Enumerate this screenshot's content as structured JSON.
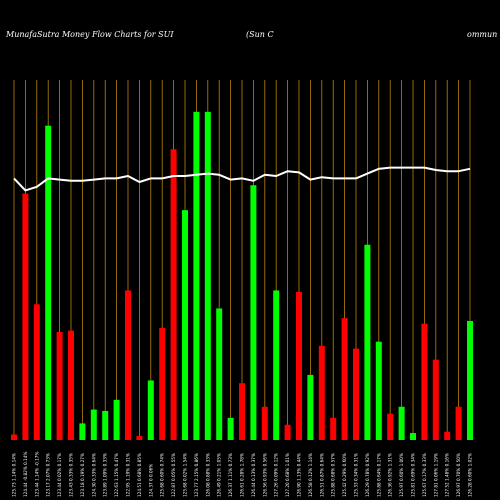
{
  "chart_data": {
    "type": "bar",
    "title_left": "MunafaSutra  Money Flow  Charts for SUI",
    "title_mid": "(Sun  C",
    "title_right": "ommun",
    "ylim": [
      0,
      260
    ],
    "line_ylim": [
      0,
      300
    ],
    "colors": {
      "up": "#00ff00",
      "down": "#ff0000",
      "line": "#ffffff",
      "grid": "#b8860b",
      "background": "#000000"
    },
    "bars": [
      {
        "label": "125.73 1.14% 0.14%",
        "value": 4,
        "color": "down"
      },
      {
        "label": "124.44 -0.82% 0.14%",
        "value": 178,
        "color": "down"
      },
      {
        "label": "123.44 1.14% -0.17%",
        "value": 98,
        "color": "down"
      },
      {
        "label": "123.17 2.07% 0.73%",
        "value": 227,
        "color": "up"
      },
      {
        "label": "123.44 0.02% 0.17%",
        "value": 78,
        "color": "down"
      },
      {
        "label": "123.43 0.33% 0.35%",
        "value": 79,
        "color": "down"
      },
      {
        "label": "123.18 0.19% 0.27%",
        "value": 12,
        "color": "up"
      },
      {
        "label": "124.30 0.33% 0.64%",
        "value": 22,
        "color": "up"
      },
      {
        "label": "123.89 1.09% 0.33%",
        "value": 21,
        "color": "up"
      },
      {
        "label": "122.63 1.15% 0.47%",
        "value": 29,
        "color": "up"
      },
      {
        "label": "122.95 1.19% 0.31%",
        "value": 108,
        "color": "down"
      },
      {
        "label": "124.51 0.68% 0.85%",
        "value": 3,
        "color": "down"
      },
      {
        "label": "124.37 0 0.06%",
        "value": 43,
        "color": "up"
      },
      {
        "label": "125.68 0.60% 0.74%",
        "value": 81,
        "color": "down"
      },
      {
        "label": "122.87 0.05% 0.55%",
        "value": 210,
        "color": "down"
      },
      {
        "label": "125.68 0.02% 1.54%",
        "value": 166,
        "color": "up"
      },
      {
        "label": "123.77 2.15% 0.86%",
        "value": 237,
        "color": "up"
      },
      {
        "label": "126.08 0.88% 0.33%",
        "value": 237,
        "color": "up"
      },
      {
        "label": "126.49 0.21% 1.05%",
        "value": 95,
        "color": "up"
      },
      {
        "label": "126.37 1.11% 0.73%",
        "value": 16,
        "color": "up"
      },
      {
        "label": "126.61 0.28% 1.78%",
        "value": 41,
        "color": "down"
      },
      {
        "label": "126.44 0.13% 0.37%",
        "value": 184,
        "color": "up"
      },
      {
        "label": "126.56 0.93% 0.56%",
        "value": 24,
        "color": "down"
      },
      {
        "label": "127.26 0.09% 0.12%",
        "value": 108,
        "color": "up"
      },
      {
        "label": "127.20 0.68% 1.01%",
        "value": 11,
        "color": "down"
      },
      {
        "label": "126.90 1.13% 0.44%",
        "value": 107,
        "color": "down"
      },
      {
        "label": "126.58 0.12% 1.14%",
        "value": 47,
        "color": "up"
      },
      {
        "label": "126.51 0.87% 0.64%",
        "value": 68,
        "color": "down"
      },
      {
        "label": "125.88 0.68% 0.57%",
        "value": 16,
        "color": "down"
      },
      {
        "label": "125.42 0.29% 0.60%",
        "value": 88,
        "color": "down"
      },
      {
        "label": "125.33 0.34% 0.31%",
        "value": 66,
        "color": "down"
      },
      {
        "label": "126.29 0.78% 0.92%",
        "value": 141,
        "color": "up"
      },
      {
        "label": "125.88 0.64% 0.17%",
        "value": 71,
        "color": "up"
      },
      {
        "label": "126.36 0.92% 1.31%",
        "value": 19,
        "color": "down"
      },
      {
        "label": "125.97 0.60% 1.00%",
        "value": 24,
        "color": "up"
      },
      {
        "label": "125.81 0.69% 0.34%",
        "value": 5,
        "color": "up"
      },
      {
        "label": "125.67 0.17% 0.33%",
        "value": 84,
        "color": "down"
      },
      {
        "label": "127.81 0.06% 1.19%",
        "value": 58,
        "color": "down"
      },
      {
        "label": "127.52 1.48% 0.16%",
        "value": 6,
        "color": "down"
      },
      {
        "label": "126.97 0.70% 0.50%",
        "value": 24,
        "color": "down"
      },
      {
        "label": "126.28 0.60% 1.02%",
        "value": 86,
        "color": "up"
      }
    ],
    "line": [
      218,
      208,
      211,
      218,
      217,
      216,
      216,
      217,
      218,
      218,
      220,
      215,
      218,
      218,
      220,
      220,
      221,
      222,
      221,
      217,
      218,
      216,
      221,
      220,
      224,
      223,
      217,
      219,
      218,
      218,
      218,
      222,
      226,
      227,
      227,
      227,
      227,
      225,
      224,
      224,
      226
    ]
  }
}
